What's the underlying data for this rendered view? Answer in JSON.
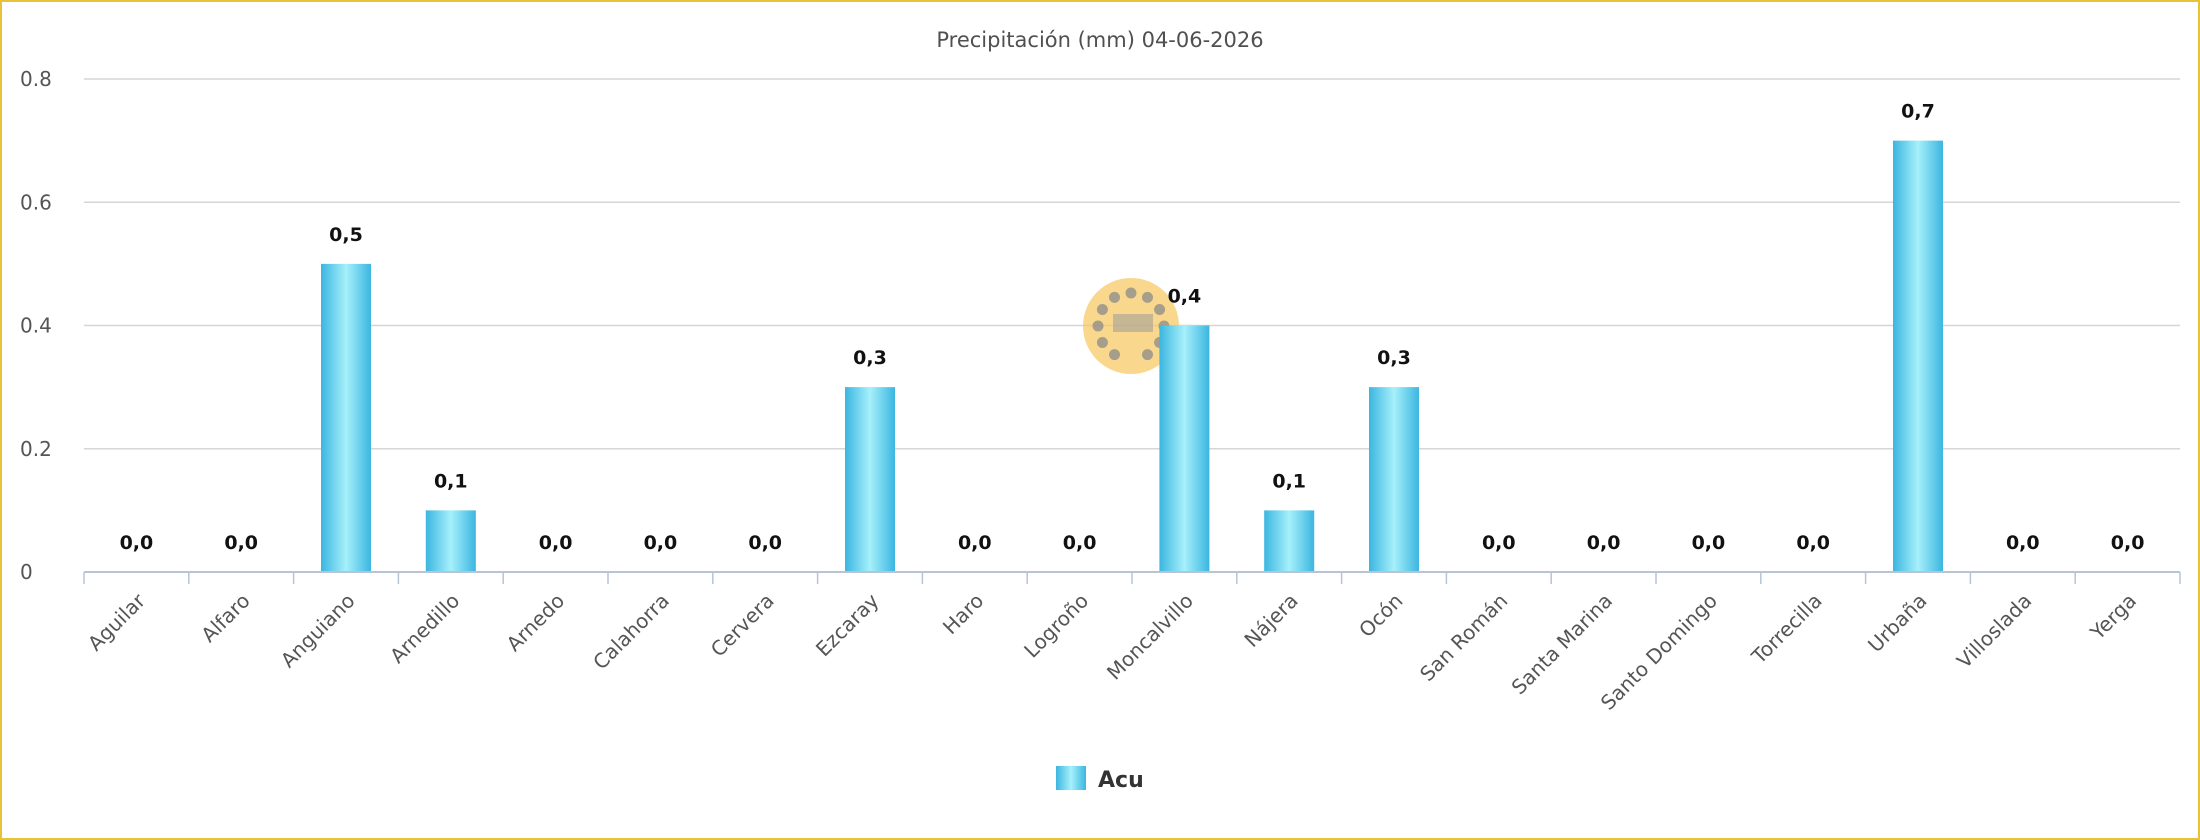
{
  "chart_data": {
    "type": "bar",
    "title": "Precipitación (mm) 04-06-2026",
    "xlabel": "",
    "ylabel": "",
    "ylim": [
      0,
      0.8
    ],
    "yticks": [
      {
        "value": 0,
        "label": "0"
      },
      {
        "value": 0.2,
        "label": "0.2"
      },
      {
        "value": 0.4,
        "label": "0.4"
      },
      {
        "value": 0.6,
        "label": "0.6"
      },
      {
        "value": 0.8,
        "label": "0.8"
      }
    ],
    "grid": true,
    "legend_position": "bottom-center",
    "categories": [
      "Aguilar",
      "Alfaro",
      "Anguiano",
      "Arnedillo",
      "Arnedo",
      "Calahorra",
      "Cervera",
      "Ezcaray",
      "Haro",
      "Logroño",
      "Moncalvillo",
      "Nájera",
      "Ocón",
      "San Román",
      "Santa Marina",
      "Santo Domingo",
      "Torrecilla",
      "Urbaña",
      "Villoslada",
      "Yerga"
    ],
    "series": [
      {
        "name": "Acu",
        "color": "#4fc3e8",
        "values": [
          0.0,
          0.0,
          0.5,
          0.1,
          0.0,
          0.0,
          0.0,
          0.3,
          0.0,
          0.0,
          0.4,
          0.1,
          0.3,
          0.0,
          0.0,
          0.0,
          0.0,
          0.7,
          0.0,
          0.0
        ],
        "data_labels": [
          "0,0",
          "0,0",
          "0,5",
          "0,1",
          "0,0",
          "0,0",
          "0,0",
          "0,3",
          "0,0",
          "0,0",
          "0,4",
          "0,1",
          "0,3",
          "0,0",
          "0,0",
          "0,0",
          "0,0",
          "0,7",
          "0,0",
          "0,0"
        ]
      }
    ],
    "watermark_logo": "112-logo"
  }
}
